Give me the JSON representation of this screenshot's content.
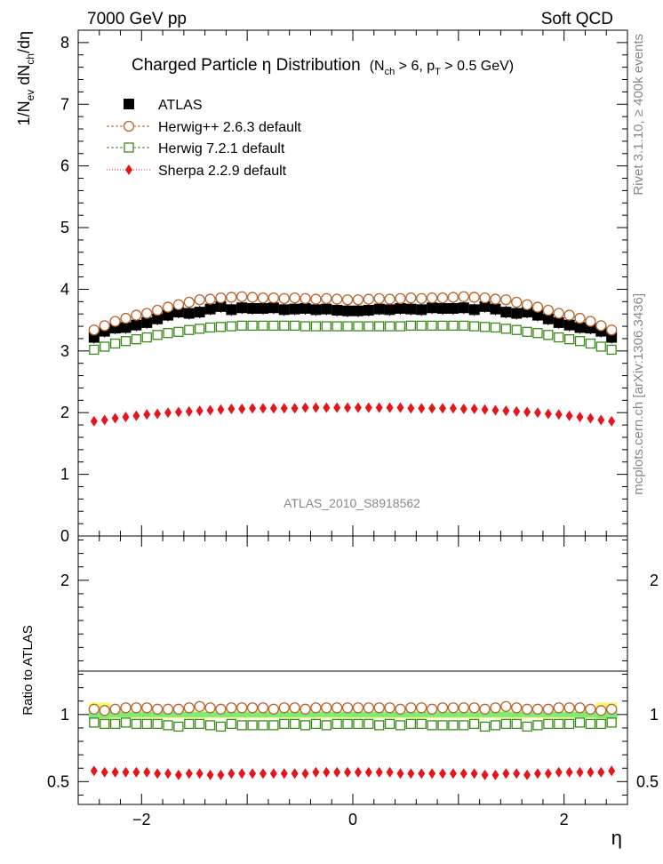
{
  "header": {
    "left_title": "7000 GeV pp",
    "right_title": "Soft QCD"
  },
  "side_labels": {
    "top": "Rivet 3.1.10, ≥ 400k events",
    "bottom": "mcplots.cern.ch [arXiv:1306.3436]"
  },
  "plot_title": {
    "main": "Charged Particle  η Distribution",
    "cut_open": "(N",
    "cut_sub1": "ch",
    "cut_mid": " > 6, p",
    "cut_sub2": "T",
    "cut_close": " > 0.5 GeV)"
  },
  "watermark": "ATLAS_2010_S8918562",
  "axes": {
    "ylabel_top": {
      "p1": "1/N",
      "s1": "ev",
      "p2": " dN",
      "s2": "ch",
      "p3": "/dη"
    },
    "ylabel_bottom": "Ratio to ATLAS",
    "xlabel": "η"
  },
  "legend": [
    {
      "label": "ATLAS",
      "color": "#000000",
      "marker": "filled-square"
    },
    {
      "label": "Herwig++ 2.6.3 default",
      "color": "#b8632c",
      "marker": "open-circle"
    },
    {
      "label": "Herwig 7.2.1 default",
      "color": "#3a8a1a",
      "marker": "open-square"
    },
    {
      "label": "Sherpa 2.2.9 default",
      "color": "#e8141c",
      "marker": "filled-diamond"
    }
  ],
  "chart_data": [
    {
      "type": "scatter",
      "title": "Charged Particle η Distribution",
      "xlabel": "η",
      "ylabel": "1/N_ev dN_ch/dη",
      "xlim": [
        -2.6,
        2.6
      ],
      "ylim": [
        0,
        8.2
      ],
      "x_ticks": [
        -2,
        0,
        2
      ],
      "x_tick_labels": [
        "−2",
        "0",
        "2"
      ],
      "y_ticks": [
        0,
        1,
        2,
        3,
        4,
        5,
        6,
        7,
        8
      ],
      "y_tick_labels": [
        "0",
        "1",
        "2",
        "3",
        "4",
        "5",
        "6",
        "7",
        "8"
      ],
      "x": [
        -2.45,
        -2.35,
        -2.25,
        -2.15,
        -2.05,
        -1.95,
        -1.85,
        -1.75,
        -1.65,
        -1.55,
        -1.45,
        -1.35,
        -1.25,
        -1.15,
        -1.05,
        -0.95,
        -0.85,
        -0.75,
        -0.65,
        -0.55,
        -0.45,
        -0.35,
        -0.25,
        -0.15,
        -0.05,
        0.05,
        0.15,
        0.25,
        0.35,
        0.45,
        0.55,
        0.65,
        0.75,
        0.85,
        0.95,
        1.05,
        1.15,
        1.25,
        1.35,
        1.45,
        1.55,
        1.65,
        1.75,
        1.85,
        1.95,
        2.05,
        2.15,
        2.25,
        2.35,
        2.45
      ],
      "series": [
        {
          "name": "ATLAS",
          "values": [
            3.22,
            3.32,
            3.37,
            3.38,
            3.42,
            3.46,
            3.52,
            3.58,
            3.63,
            3.61,
            3.63,
            3.68,
            3.72,
            3.67,
            3.7,
            3.69,
            3.69,
            3.7,
            3.67,
            3.68,
            3.69,
            3.67,
            3.68,
            3.66,
            3.65,
            3.65,
            3.66,
            3.68,
            3.67,
            3.69,
            3.68,
            3.67,
            3.7,
            3.69,
            3.69,
            3.7,
            3.67,
            3.72,
            3.68,
            3.63,
            3.61,
            3.63,
            3.58,
            3.52,
            3.46,
            3.42,
            3.38,
            3.37,
            3.32,
            3.22
          ]
        },
        {
          "name": "Herwig++ 2.6.3 default",
          "values": [
            3.34,
            3.41,
            3.48,
            3.53,
            3.58,
            3.61,
            3.66,
            3.71,
            3.75,
            3.79,
            3.83,
            3.84,
            3.86,
            3.87,
            3.88,
            3.87,
            3.86,
            3.86,
            3.85,
            3.86,
            3.85,
            3.84,
            3.85,
            3.84,
            3.83,
            3.83,
            3.84,
            3.85,
            3.84,
            3.85,
            3.86,
            3.85,
            3.86,
            3.86,
            3.87,
            3.88,
            3.87,
            3.86,
            3.84,
            3.83,
            3.79,
            3.75,
            3.71,
            3.66,
            3.61,
            3.58,
            3.53,
            3.48,
            3.41,
            3.34
          ]
        },
        {
          "name": "Herwig 7.2.1 default",
          "values": [
            3.02,
            3.07,
            3.12,
            3.16,
            3.19,
            3.22,
            3.26,
            3.29,
            3.31,
            3.34,
            3.36,
            3.38,
            3.39,
            3.4,
            3.41,
            3.41,
            3.41,
            3.41,
            3.41,
            3.41,
            3.4,
            3.4,
            3.4,
            3.4,
            3.4,
            3.4,
            3.4,
            3.4,
            3.4,
            3.4,
            3.41,
            3.41,
            3.41,
            3.41,
            3.41,
            3.41,
            3.4,
            3.39,
            3.38,
            3.36,
            3.34,
            3.31,
            3.29,
            3.26,
            3.22,
            3.19,
            3.16,
            3.12,
            3.07,
            3.02
          ]
        },
        {
          "name": "Sherpa 2.2.9 default",
          "values": [
            1.86,
            1.88,
            1.91,
            1.93,
            1.95,
            1.97,
            1.98,
            2.0,
            2.01,
            2.02,
            2.03,
            2.04,
            2.05,
            2.06,
            2.06,
            2.07,
            2.07,
            2.07,
            2.07,
            2.07,
            2.08,
            2.08,
            2.08,
            2.08,
            2.08,
            2.08,
            2.08,
            2.08,
            2.08,
            2.08,
            2.07,
            2.07,
            2.07,
            2.07,
            2.07,
            2.06,
            2.06,
            2.05,
            2.04,
            2.03,
            2.02,
            2.01,
            2.0,
            1.98,
            1.97,
            1.95,
            1.93,
            1.91,
            1.88,
            1.86
          ]
        }
      ]
    },
    {
      "type": "scatter",
      "title": "",
      "xlabel": "η",
      "ylabel": "Ratio to ATLAS",
      "xlim": [
        -2.6,
        2.6
      ],
      "ylim": [
        0.33,
        2.33
      ],
      "x_ticks": [
        -2,
        0,
        2
      ],
      "x_tick_labels": [
        "−2",
        "0",
        "2"
      ],
      "y_ticks": [
        0.5,
        1,
        2
      ],
      "y_tick_labels": [
        "0.5",
        "1",
        "2"
      ],
      "reference_line": 1.0,
      "uncertainty_band": {
        "inner_color": "#7dea7d",
        "outer_color": "#fafa78",
        "inner_half_width": [
          0.03,
          0.028,
          0.022,
          0.02,
          0.02,
          0.02,
          0.02,
          0.02,
          0.02,
          0.02,
          0.02,
          0.02,
          0.02,
          0.02,
          0.02,
          0.02,
          0.02,
          0.02,
          0.02,
          0.02,
          0.02,
          0.02,
          0.02,
          0.02,
          0.02,
          0.02,
          0.02,
          0.02,
          0.02,
          0.02,
          0.02,
          0.02,
          0.02,
          0.02,
          0.02,
          0.02,
          0.02,
          0.02,
          0.02,
          0.02,
          0.02,
          0.02,
          0.02,
          0.02,
          0.02,
          0.02,
          0.02,
          0.022,
          0.028,
          0.03
        ],
        "outer_half_width": [
          0.09,
          0.09,
          0.03,
          0.03,
          0.03,
          0.03,
          0.03,
          0.03,
          0.03,
          0.03,
          0.03,
          0.03,
          0.03,
          0.03,
          0.03,
          0.03,
          0.03,
          0.03,
          0.03,
          0.03,
          0.03,
          0.03,
          0.03,
          0.03,
          0.03,
          0.03,
          0.03,
          0.03,
          0.03,
          0.03,
          0.03,
          0.03,
          0.03,
          0.03,
          0.03,
          0.03,
          0.03,
          0.03,
          0.03,
          0.03,
          0.03,
          0.03,
          0.03,
          0.03,
          0.03,
          0.03,
          0.03,
          0.03,
          0.09,
          0.09
        ]
      },
      "x": [
        -2.45,
        -2.35,
        -2.25,
        -2.15,
        -2.05,
        -1.95,
        -1.85,
        -1.75,
        -1.65,
        -1.55,
        -1.45,
        -1.35,
        -1.25,
        -1.15,
        -1.05,
        -0.95,
        -0.85,
        -0.75,
        -0.65,
        -0.55,
        -0.45,
        -0.35,
        -0.25,
        -0.15,
        -0.05,
        0.05,
        0.15,
        0.25,
        0.35,
        0.45,
        0.55,
        0.65,
        0.75,
        0.85,
        0.95,
        1.05,
        1.15,
        1.25,
        1.35,
        1.45,
        1.55,
        1.65,
        1.75,
        1.85,
        1.95,
        2.05,
        2.15,
        2.25,
        2.35,
        2.45
      ],
      "series": [
        {
          "name": "Herwig++ 2.6.3 default",
          "values": [
            1.04,
            1.03,
            1.04,
            1.05,
            1.05,
            1.05,
            1.04,
            1.04,
            1.04,
            1.05,
            1.06,
            1.05,
            1.04,
            1.05,
            1.05,
            1.05,
            1.05,
            1.04,
            1.05,
            1.05,
            1.04,
            1.05,
            1.05,
            1.05,
            1.05,
            1.05,
            1.05,
            1.05,
            1.05,
            1.04,
            1.05,
            1.05,
            1.04,
            1.05,
            1.05,
            1.05,
            1.05,
            1.04,
            1.05,
            1.06,
            1.05,
            1.04,
            1.04,
            1.04,
            1.05,
            1.05,
            1.05,
            1.04,
            1.03,
            1.04
          ]
        },
        {
          "name": "Herwig 7.2.1 default",
          "values": [
            0.94,
            0.93,
            0.93,
            0.94,
            0.93,
            0.93,
            0.93,
            0.92,
            0.91,
            0.93,
            0.93,
            0.92,
            0.91,
            0.93,
            0.92,
            0.92,
            0.92,
            0.92,
            0.93,
            0.93,
            0.92,
            0.93,
            0.92,
            0.93,
            0.93,
            0.93,
            0.93,
            0.92,
            0.93,
            0.92,
            0.93,
            0.93,
            0.92,
            0.92,
            0.92,
            0.92,
            0.93,
            0.91,
            0.92,
            0.93,
            0.93,
            0.91,
            0.92,
            0.93,
            0.93,
            0.93,
            0.94,
            0.93,
            0.93,
            0.94
          ]
        },
        {
          "name": "Sherpa 2.2.9 default",
          "values": [
            0.58,
            0.57,
            0.57,
            0.57,
            0.57,
            0.57,
            0.56,
            0.56,
            0.55,
            0.56,
            0.56,
            0.55,
            0.55,
            0.56,
            0.56,
            0.56,
            0.56,
            0.56,
            0.56,
            0.56,
            0.56,
            0.57,
            0.57,
            0.57,
            0.57,
            0.57,
            0.57,
            0.57,
            0.57,
            0.56,
            0.56,
            0.56,
            0.56,
            0.56,
            0.56,
            0.56,
            0.56,
            0.55,
            0.55,
            0.56,
            0.56,
            0.55,
            0.56,
            0.56,
            0.57,
            0.57,
            0.57,
            0.57,
            0.57,
            0.58
          ]
        }
      ]
    }
  ]
}
